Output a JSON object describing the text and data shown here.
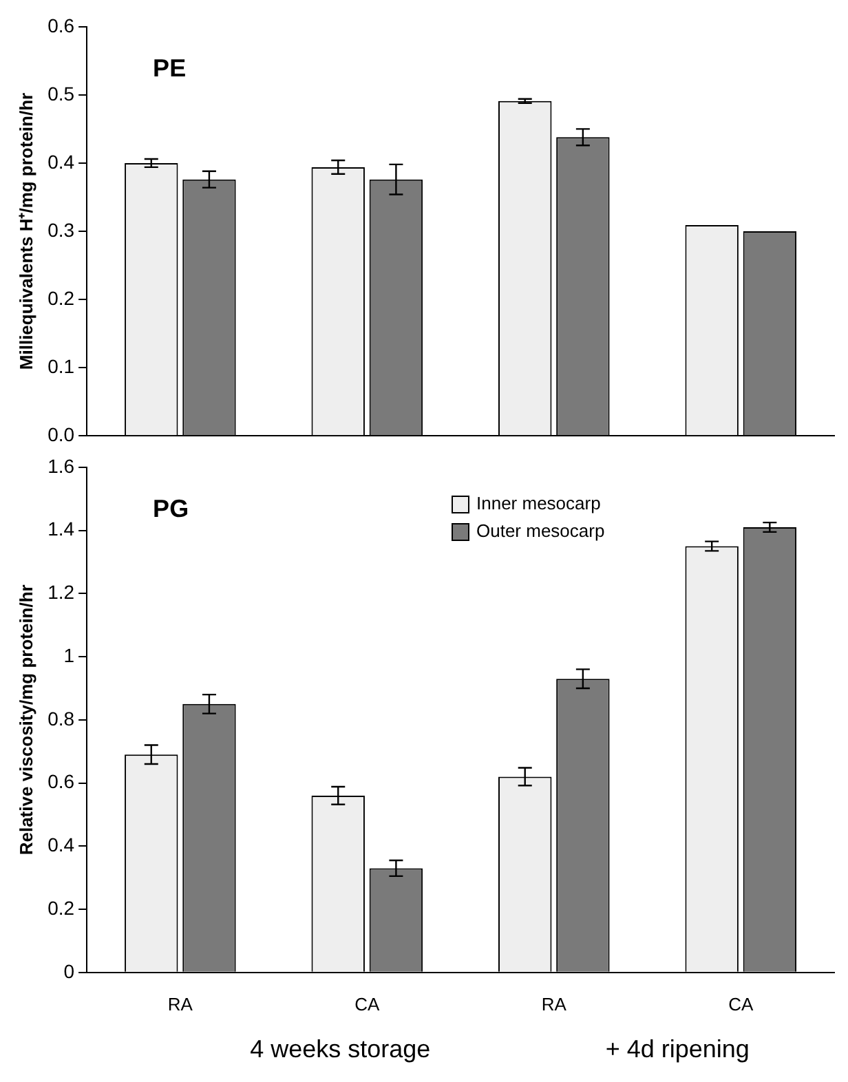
{
  "chart_data": [
    {
      "type": "bar",
      "title": "PE",
      "ylabel": "Milliequivalents H⁺/mg protein/hr",
      "categories": [
        null,
        null,
        null,
        null
      ],
      "tick_labels": "y",
      "series": [
        {
          "color": "#eeeeee",
          "values": [
            0.4,
            0.394,
            0.491,
            0.309
          ],
          "errors": [
            0.006,
            0.01,
            0.003,
            null
          ]
        },
        {
          "color": "#7a7a7a",
          "values": [
            0.376,
            0.376,
            0.438,
            0.3
          ],
          "errors": [
            0.012,
            0.022,
            0.012,
            null
          ]
        }
      ],
      "ylim": [
        0,
        0.6
      ],
      "yticks": [
        {
          "value": 0,
          "label": "0.0"
        },
        0.1,
        0.2,
        0.3,
        0.4,
        0.5,
        0.6
      ],
      "grid": false,
      "legend": false
    },
    {
      "type": "bar",
      "title": "PG",
      "ylabel": "Relative viscosity/mg protein/hr",
      "categories": [
        "RA",
        "CA",
        "RA",
        "CA"
      ],
      "series": [
        {
          "name": "Inner mesocarp",
          "color": "#eeeeee",
          "values": [
            0.69,
            0.56,
            0.62,
            1.35
          ],
          "errors": [
            0.03,
            0.028,
            0.028,
            0.015
          ]
        },
        {
          "name": "Outer mesocarp",
          "color": "#7a7a7a",
          "values": [
            0.85,
            0.33,
            0.93,
            1.41
          ],
          "errors": [
            0.03,
            0.025,
            0.03,
            0.015
          ]
        }
      ],
      "ylim": [
        0,
        1.6
      ],
      "yticks": [
        0,
        0.2,
        0.4,
        0.6,
        0.8,
        1,
        1.2,
        1.4,
        1.6
      ],
      "grid": false,
      "legend": "top",
      "annotations": [
        "4 weeks storage",
        "+ 4d ripening"
      ]
    }
  ]
}
